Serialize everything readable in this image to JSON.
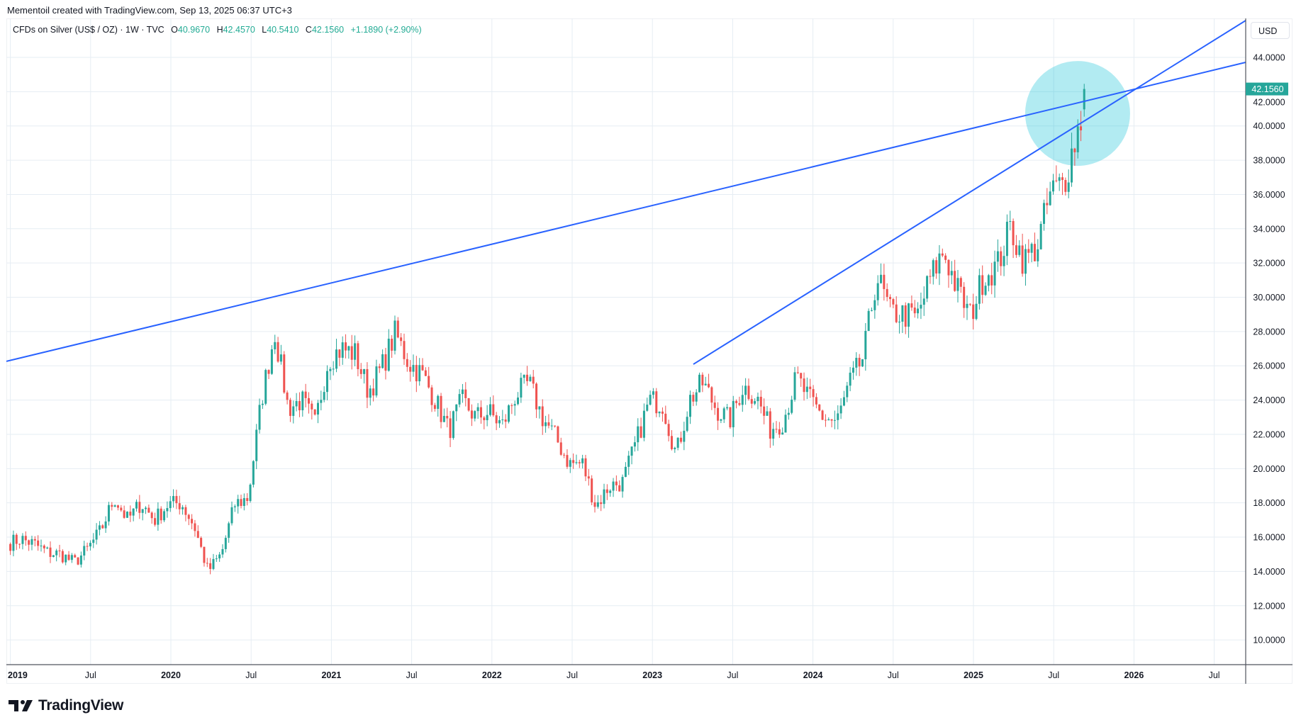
{
  "header": {
    "credit": "Mementoil created with TradingView.com, Sep 13, 2025 06:37 UTC+3"
  },
  "legend": {
    "symbol": "CFDs on Silver (US$ / OZ) · 1W · TVC",
    "o_label": "O",
    "o": "40.9670",
    "h_label": "H",
    "h": "42.4570",
    "l_label": "L",
    "l": "40.5410",
    "c_label": "C",
    "c": "42.1560",
    "change": "+1.1890 (+2.90%)"
  },
  "price_axis": {
    "currency": "USD",
    "last_price": "42.1560"
  },
  "logo": {
    "text": "TradingView"
  },
  "colors": {
    "up": "#26a69a",
    "down": "#ef5350",
    "trendline": "#2962ff",
    "highlight": "#00bcd4",
    "grid": "#e6edf3",
    "last_price_bg": "#26a69a"
  },
  "chart_data": {
    "type": "candlestick",
    "title": "CFDs on Silver (US$ / OZ) · 1W · TVC",
    "interval": "1W",
    "ylabel": "USD",
    "ylim": [
      8.5,
      45.5
    ],
    "xlim": [
      2018.975,
      2026.696
    ],
    "y_ticks": [
      "10.0000",
      "12.0000",
      "14.0000",
      "16.0000",
      "18.0000",
      "20.0000",
      "22.0000",
      "24.0000",
      "26.0000",
      "28.0000",
      "30.0000",
      "32.0000",
      "34.0000",
      "36.0000",
      "38.0000",
      "40.0000",
      "42.0000",
      "44.0000"
    ],
    "x_ticks": [
      {
        "label": "2019",
        "t": 2019.0
      },
      {
        "label": "Jul",
        "t": 2019.5
      },
      {
        "label": "2020",
        "t": 2020.0
      },
      {
        "label": "Jul",
        "t": 2020.5
      },
      {
        "label": "2021",
        "t": 2021.0
      },
      {
        "label": "Jul",
        "t": 2021.5
      },
      {
        "label": "2022",
        "t": 2022.0
      },
      {
        "label": "Jul",
        "t": 2022.5
      },
      {
        "label": "2023",
        "t": 2023.0
      },
      {
        "label": "Jul",
        "t": 2023.5
      },
      {
        "label": "2024",
        "t": 2024.0
      },
      {
        "label": "Jul",
        "t": 2024.5
      },
      {
        "label": "2025",
        "t": 2025.0
      },
      {
        "label": "Jul",
        "t": 2025.5
      },
      {
        "label": "2026",
        "t": 2026.0
      },
      {
        "label": "Jul",
        "t": 2026.5
      }
    ],
    "grid": true,
    "monthly_closes_approx": {
      "start": "2019-01",
      "values": [
        15.9,
        15.6,
        15.1,
        15.0,
        14.5,
        15.3,
        16.4,
        18.3,
        17.0,
        18.0,
        17.0,
        17.9,
        18.0,
        16.6,
        14.0,
        15.0,
        17.9,
        18.3,
        24.0,
        28.0,
        23.5,
        24.0,
        22.6,
        26.4,
        27.0,
        26.7,
        24.5,
        25.9,
        27.9,
        26.2,
        25.5,
        24.0,
        22.2,
        24.0,
        23.0,
        23.3,
        22.5,
        24.3,
        25.0,
        23.0,
        21.8,
        20.3,
        20.3,
        17.8,
        19.0,
        19.2,
        21.5,
        24.0,
        23.8,
        20.8,
        24.0,
        25.0,
        23.5,
        22.8,
        24.8,
        24.2,
        22.3,
        22.8,
        25.3,
        24.0,
        23.0,
        22.7,
        25.0,
        26.5,
        31.3,
        29.1,
        29.0,
        28.8,
        31.1,
        32.7,
        30.5,
        28.9,
        31.3,
        31.8,
        34.1,
        32.1,
        33.0,
        36.1,
        36.7,
        39.7,
        42.156
      ]
    },
    "first_open": 15.6,
    "last_bar": {
      "open": 40.967,
      "high": 42.457,
      "low": 40.541,
      "close": 42.156
    },
    "trendlines": [
      {
        "name": "upper-resistance",
        "from": {
          "t": 2018.975,
          "price": 26.26
        },
        "to": {
          "t": 2026.696,
          "price": 43.71
        }
      },
      {
        "name": "rising-support",
        "from": {
          "t": 2023.255,
          "price": 26.09
        },
        "to": {
          "t": 2026.696,
          "price": 46.15
        }
      }
    ],
    "highlight_circle": {
      "center": {
        "t": 2025.649,
        "price": 40.73
      }
    }
  }
}
